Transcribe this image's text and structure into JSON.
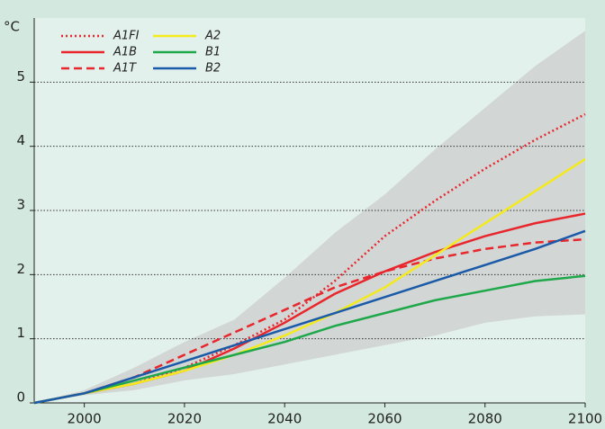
{
  "chart_data": {
    "type": "line",
    "y_label": "°C",
    "x": [
      1990,
      2000,
      2010,
      2020,
      2030,
      2040,
      2050,
      2060,
      2070,
      2080,
      2090,
      2100
    ],
    "xlim": [
      1990,
      2100
    ],
    "xticks": [
      2000,
      2020,
      2040,
      2060,
      2080,
      2100
    ],
    "ylim": [
      0,
      6
    ],
    "yticks": [
      0,
      1,
      2,
      3,
      4,
      5
    ],
    "grid": true,
    "range": {
      "color": "#d2d6d5",
      "upper": [
        0,
        0.2,
        0.55,
        0.95,
        1.3,
        1.95,
        2.65,
        3.25,
        3.95,
        4.6,
        5.25,
        5.8
      ],
      "lower": [
        0,
        0.12,
        0.2,
        0.35,
        0.45,
        0.6,
        0.75,
        0.9,
        1.05,
        1.25,
        1.35,
        1.38
      ]
    },
    "series": [
      {
        "name": "A1FI",
        "color": "#e8262c",
        "dash": "dotted",
        "values": [
          0,
          0.15,
          0.3,
          0.55,
          0.9,
          1.3,
          1.9,
          2.6,
          3.15,
          3.65,
          4.1,
          4.5
        ]
      },
      {
        "name": "A1B",
        "color": "#e8262c",
        "dash": "solid",
        "values": [
          0,
          0.15,
          0.3,
          0.5,
          0.85,
          1.25,
          1.7,
          2.05,
          2.35,
          2.6,
          2.8,
          2.95
        ]
      },
      {
        "name": "A1T",
        "color": "#e8262c",
        "dash": "dashed",
        "values": [
          0,
          0.15,
          0.4,
          0.75,
          1.1,
          1.45,
          1.8,
          2.05,
          2.25,
          2.4,
          2.5,
          2.55
        ]
      },
      {
        "name": "A2",
        "color": "#f4ea1c",
        "dash": "solid",
        "values": [
          0,
          0.15,
          0.3,
          0.5,
          0.75,
          1.05,
          1.4,
          1.8,
          2.3,
          2.8,
          3.3,
          3.8
        ]
      },
      {
        "name": "B1",
        "color": "#1ea84a",
        "dash": "solid",
        "values": [
          0,
          0.15,
          0.35,
          0.55,
          0.75,
          0.95,
          1.2,
          1.4,
          1.6,
          1.75,
          1.9,
          1.98
        ]
      },
      {
        "name": "B2",
        "color": "#1a5aa8",
        "dash": "solid",
        "values": [
          0,
          0.15,
          0.4,
          0.65,
          0.9,
          1.15,
          1.4,
          1.65,
          1.9,
          2.15,
          2.4,
          2.68
        ]
      }
    ]
  }
}
